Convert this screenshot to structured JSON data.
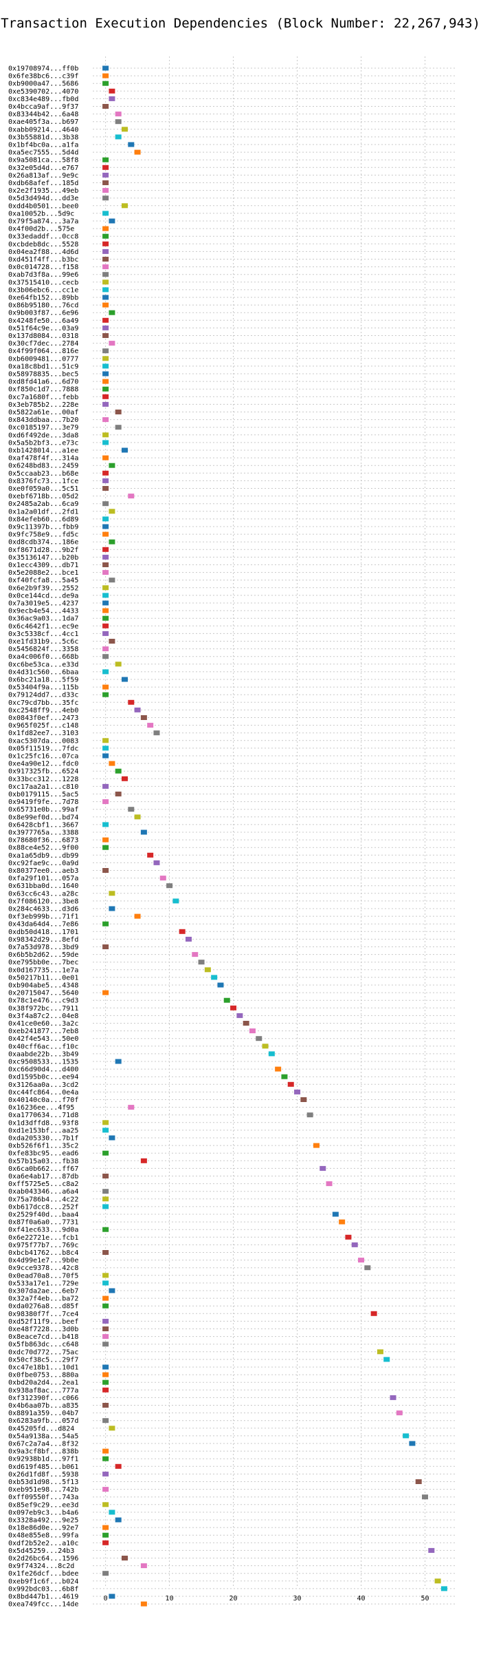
{
  "chart_data": {
    "type": "scatter",
    "title": "Transaction Execution Dependencies (Block Number: 22,267,943)",
    "xlabel": "",
    "ylabel": "",
    "xlim": [
      -2,
      55
    ],
    "xticks": [
      0,
      10,
      20,
      30,
      40,
      50
    ],
    "grid": true,
    "palette": [
      "#1f77b4",
      "#ff7f0e",
      "#2ca02c",
      "#d62728",
      "#9467bd",
      "#8c564b",
      "#e377c2",
      "#7f7f7f",
      "#bcbd22",
      "#17becf"
    ],
    "transactions": [
      "0x19708974...ff0b",
      "0x6fe38bc6...c39f",
      "0xb9000a47...5686",
      "0xe5390702...4070",
      "0xc834e489...fb0d",
      "0x4bcca9af...9f37",
      "0x83344b42...6a48",
      "0xae405f3a...b697",
      "0xabb09214...4640",
      "0x3b55881d...3b38",
      "0x1bf4bc0a...a1fa",
      "0xa5ec7555...5d4d",
      "0x9a5081ca...58f8",
      "0x32e05d4d...e767",
      "0x26a813af...9e9c",
      "0xdb68afef...185d",
      "0x2e2f1935...49eb",
      "0x5d3d494d...dd3e",
      "0xdd4b0501...bee0",
      "0xa10052b...5d9c",
      "0x79f5a874...3a7a",
      "0x4f00d2b...575e",
      "0x33edaddf...0cc8",
      "0xcbdeb8dc...5528",
      "0x04ea2f88...4d6d",
      "0xd451f4ff...b3bc",
      "0x0c014728...f158",
      "0xab7d3f8a...99e6",
      "0x37515410...cecb",
      "0x3b06ebc6...cc1e",
      "0xe64fb152...89bb",
      "0x86b95180...76cd",
      "0x9b003f87...6e96",
      "0x4248fe50...6a49",
      "0x51f64c9e...03a9",
      "0x137d8084...0318",
      "0x30cf7dec...2784",
      "0x4f99f064...816e",
      "0xb6009481...0777",
      "0xa18c8bd1...51c9",
      "0x58978835...bec5",
      "0xd8fd41a6...6d70",
      "0xf850c1d7...7888",
      "0xc7a1680f...febb",
      "0x3eb785b2...228e",
      "0x5822a61e...00af",
      "0x843ddbaa...7b20",
      "0xc0185197...3e79",
      "0xd6f492de...3da8",
      "0x5a5b2bf3...e73c",
      "0xb1428014...a1ee",
      "0xaf478f4f...314a",
      "0x6248bd83...2459",
      "0x5ccaab23...b68e",
      "0x8376fc73...1fce",
      "0xe0f059a0...5c51",
      "0xebf6718b...05d2",
      "0x2485a2ab...6ca9",
      "0x1a2a01df...2fd1",
      "0x84efeb60...6d89",
      "0x9c11397b...fbb9",
      "0x9fc758e9...fd5c",
      "0xd8cdb374...186e",
      "0xf8671d28...9b2f",
      "0x35136147...b20b",
      "0x1ecc4309...db71",
      "0x5e2088e2...bce1",
      "0xf40fcfa8...5a45",
      "0x6e2b9f39...2552",
      "0x0ce144cd...de9a",
      "0x7a3019e5...4237",
      "0x9ecb4e54...4433",
      "0x36ac9a03...1da7",
      "0x6c4642f1...ec9e",
      "0x3c5338cf...4cc1",
      "0xe1fd31b9...5c6c",
      "0x5456824f...3358",
      "0xa4c006f0...668b",
      "0xc6be53ca...e33d",
      "0x4d31c560...6baa",
      "0x6bc21a18...5f59",
      "0x53404f9a...115b",
      "0x79124dd7...d33c",
      "0xc79cd7bb...35fc",
      "0xc2548ff9...4eb0",
      "0x0843f0ef...2473",
      "0x965f025f...c148",
      "0x1fd82ee7...3103",
      "0xac5307da...0083",
      "0x05f11519...7fdc",
      "0x1c25fc16...07ca",
      "0xe4a90e12...fdc0",
      "0x917325fb...6524",
      "0x33bcc312...1228",
      "0xc17aa2a1...c810",
      "0xb0179115...5ac5",
      "0x9419f9fe...7d78",
      "0x65731e0b...99af",
      "0x8e99ef0d...bd74",
      "0x6428cbf1...3667",
      "0x3977765a...3388",
      "0x78680f36...6873",
      "0x88ce4e52...9f00",
      "0xa1a65db9...db99",
      "0xc92fae9c...0a9d",
      "0x80377ee0...aeb3",
      "0xfa29f101...057a",
      "0x631bba0d...1640",
      "0x63cc6c43...a28c",
      "0x7f086120...3be8",
      "0x284c4633...d3d6",
      "0xf3eb999b...71f1",
      "0x43da64d4...7e86",
      "0xdb50d418...1701",
      "0x98342d29...8efd",
      "0x7a53d978...3bd9",
      "0x6b5b2d62...59de",
      "0xe795bb0e...7bec",
      "0x0d167735...1e7a",
      "0x50217b11...0e01",
      "0xb904abe5...4348",
      "0x20715047...5640",
      "0x78c1e476...c9d3",
      "0x38f972bc...7911",
      "0x3f4a87c2...04e8",
      "0x41ce0e60...3a2c",
      "0xeb241877...7eb8",
      "0x42f4e543...50e0",
      "0x40cff6ac...f10c",
      "0xaabde22b...3b49",
      "0xc9508533...1535",
      "0xc66d90d4...d400",
      "0xd1595b0c...ee94",
      "0x3126aa0a...3cd2",
      "0xc44fc864...0e4a",
      "0x40140c0a...f70f",
      "0x16236ee...4f95",
      "0xa1770634...71d8",
      "0x1d3dffd8...93f8",
      "0xd1e153bf...aa25",
      "0xda205330...7b1f",
      "0xb526f6f1...35c2",
      "0xfe83bc95...ead6",
      "0x57b15a03...fb38",
      "0x6ca0b662...ff67",
      "0xa6e4ab17...87db",
      "0xff5725e5...c8a2",
      "0xab043346...a6a4",
      "0x75a786b4...4c22",
      "0xb617dcc8...252f",
      "0x2529f40d...baa4",
      "0x87f0a6a0...7731",
      "0xf41ec633...9d0a",
      "0x6e22721e...fcb1",
      "0x975f77b7...769c",
      "0xbcb41762...b8c4",
      "0x4d99e1e7...9b0e",
      "0x9cce9378...42c8",
      "0x0ead70a8...70f5",
      "0x533a17e1...729e",
      "0x307da2ae...6eb7",
      "0x32a7f4eb...ba72",
      "0xda0276a8...d85f",
      "0x98380f7f...7ce4",
      "0xd52f11f9...beef",
      "0xe48f7228...3d0b",
      "0x8eace7cd...b418",
      "0x5fb863dc...c648",
      "0xdc70d772...75ac",
      "0x50cf38c5...29f7",
      "0xc47e18b1...10d1",
      "0x0fbe0753...880a",
      "0xbd20a2d4...2ea1",
      "0x938af8ac...777a",
      "0xf312390f...c066",
      "0x4b6aa07b...a835",
      "0x8891a359...04b7",
      "0x6283a9fb...057d",
      "0x45205fd...d824",
      "0x54a9138a...54a5",
      "0x67c2a7a4...8f32",
      "0x9a3cf8bf...838b",
      "0x92938b1d...97f1",
      "0xd619f485...b061",
      "0x26d1fd8f...5938",
      "0xb53d1d98...5f13",
      "0xeb951e98...742b",
      "0xff09550f...743a",
      "0x85ef9c29...ee3d",
      "0x097eb9c3...b4a6",
      "0x3328a492...9e25",
      "0x18e86d0e...92e7",
      "0x48e855e8...99fa",
      "0xdf2b52e2...a10c",
      "0x5d45259...24b3",
      "0x2d26bc64...1596",
      "0x9f74324...8c2d",
      "0x1fe26dcf...bdee",
      "0xeb9f1c6f...b024",
      "0x992bdc03...6b8f",
      "0x8bd447b1...4619",
      "0xea749fcc...14de"
    ],
    "points": [
      [
        0,
        0
      ],
      [
        0,
        1
      ],
      [
        0,
        2
      ],
      [
        1,
        3
      ],
      [
        1,
        4
      ],
      [
        0,
        5
      ],
      [
        2,
        6
      ],
      [
        2,
        7
      ],
      [
        3,
        8
      ],
      [
        2,
        9
      ],
      [
        4,
        10
      ],
      [
        5,
        11
      ],
      [
        0,
        12
      ],
      [
        0,
        13
      ],
      [
        0,
        14
      ],
      [
        0,
        15
      ],
      [
        0,
        16
      ],
      [
        0,
        17
      ],
      [
        3,
        18
      ],
      [
        0,
        19
      ],
      [
        1,
        20
      ],
      [
        0,
        21
      ],
      [
        0,
        22
      ],
      [
        0,
        23
      ],
      [
        0,
        24
      ],
      [
        0,
        25
      ],
      [
        0,
        26
      ],
      [
        0,
        27
      ],
      [
        0,
        28
      ],
      [
        0,
        29
      ],
      [
        0,
        30
      ],
      [
        0,
        31
      ],
      [
        1,
        32
      ],
      [
        0,
        33
      ],
      [
        0,
        34
      ],
      [
        0,
        35
      ],
      [
        1,
        36
      ],
      [
        0,
        37
      ],
      [
        0,
        38
      ],
      [
        0,
        39
      ],
      [
        0,
        40
      ],
      [
        0,
        41
      ],
      [
        0,
        42
      ],
      [
        0,
        43
      ],
      [
        0,
        44
      ],
      [
        2,
        45
      ],
      [
        0,
        46
      ],
      [
        2,
        47
      ],
      [
        0,
        48
      ],
      [
        0,
        49
      ],
      [
        3,
        50
      ],
      [
        0,
        51
      ],
      [
        1,
        52
      ],
      [
        0,
        53
      ],
      [
        0,
        54
      ],
      [
        0,
        55
      ],
      [
        4,
        56
      ],
      [
        0,
        57
      ],
      [
        1,
        58
      ],
      [
        0,
        59
      ],
      [
        0,
        60
      ],
      [
        0,
        61
      ],
      [
        1,
        62
      ],
      [
        0,
        63
      ],
      [
        0,
        64
      ],
      [
        0,
        65
      ],
      [
        0,
        66
      ],
      [
        1,
        67
      ],
      [
        0,
        68
      ],
      [
        0,
        69
      ],
      [
        0,
        70
      ],
      [
        0,
        71
      ],
      [
        0,
        72
      ],
      [
        0,
        73
      ],
      [
        0,
        74
      ],
      [
        1,
        75
      ],
      [
        0,
        76
      ],
      [
        0,
        77
      ],
      [
        2,
        78
      ],
      [
        0,
        79
      ],
      [
        3,
        80
      ],
      [
        0,
        81
      ],
      [
        0,
        82
      ],
      [
        4,
        83
      ],
      [
        5,
        84
      ],
      [
        6,
        85
      ],
      [
        7,
        86
      ],
      [
        8,
        87
      ],
      [
        0,
        88
      ],
      [
        0,
        89
      ],
      [
        0,
        90
      ],
      [
        1,
        91
      ],
      [
        2,
        92
      ],
      [
        3,
        93
      ],
      [
        0,
        94
      ],
      [
        2,
        95
      ],
      [
        0,
        96
      ],
      [
        4,
        97
      ],
      [
        5,
        98
      ],
      [
        0,
        99
      ],
      [
        6,
        100
      ],
      [
        0,
        101
      ],
      [
        0,
        102
      ],
      [
        7,
        103
      ],
      [
        8,
        104
      ],
      [
        0,
        105
      ],
      [
        9,
        106
      ],
      [
        10,
        107
      ],
      [
        1,
        108
      ],
      [
        11,
        109
      ],
      [
        1,
        110
      ],
      [
        5,
        111
      ],
      [
        0,
        112
      ],
      [
        12,
        113
      ],
      [
        13,
        114
      ],
      [
        0,
        115
      ],
      [
        14,
        116
      ],
      [
        15,
        117
      ],
      [
        16,
        118
      ],
      [
        17,
        119
      ],
      [
        18,
        120
      ],
      [
        0,
        121
      ],
      [
        19,
        122
      ],
      [
        20,
        123
      ],
      [
        21,
        124
      ],
      [
        22,
        125
      ],
      [
        23,
        126
      ],
      [
        24,
        127
      ],
      [
        25,
        128
      ],
      [
        26,
        129
      ],
      [
        2,
        130
      ],
      [
        27,
        131
      ],
      [
        28,
        132
      ],
      [
        29,
        133
      ],
      [
        30,
        134
      ],
      [
        31,
        135
      ],
      [
        4,
        136
      ],
      [
        32,
        137
      ],
      [
        0,
        138
      ],
      [
        0,
        139
      ],
      [
        1,
        140
      ],
      [
        33,
        141
      ],
      [
        0,
        142
      ],
      [
        6,
        143
      ],
      [
        34,
        144
      ],
      [
        0,
        145
      ],
      [
        35,
        146
      ],
      [
        0,
        147
      ],
      [
        0,
        148
      ],
      [
        0,
        149
      ],
      [
        36,
        150
      ],
      [
        37,
        151
      ],
      [
        0,
        152
      ],
      [
        38,
        153
      ],
      [
        39,
        154
      ],
      [
        0,
        155
      ],
      [
        40,
        156
      ],
      [
        41,
        157
      ],
      [
        0,
        158
      ],
      [
        0,
        159
      ],
      [
        1,
        160
      ],
      [
        0,
        161
      ],
      [
        0,
        162
      ],
      [
        42,
        163
      ],
      [
        0,
        164
      ],
      [
        0,
        165
      ],
      [
        0,
        166
      ],
      [
        0,
        167
      ],
      [
        43,
        168
      ],
      [
        44,
        169
      ],
      [
        0,
        170
      ],
      [
        0,
        171
      ],
      [
        0,
        172
      ],
      [
        0,
        173
      ],
      [
        45,
        174
      ],
      [
        0,
        175
      ],
      [
        46,
        176
      ],
      [
        0,
        177
      ],
      [
        1,
        178
      ],
      [
        47,
        179
      ],
      [
        48,
        180
      ],
      [
        0,
        181
      ],
      [
        0,
        182
      ],
      [
        2,
        183
      ],
      [
        0,
        184
      ],
      [
        49,
        185
      ],
      [
        0,
        186
      ],
      [
        50,
        187
      ],
      [
        0,
        188
      ],
      [
        1,
        189
      ],
      [
        2,
        190
      ],
      [
        0,
        191
      ],
      [
        0,
        192
      ],
      [
        0,
        193
      ],
      [
        51,
        194
      ],
      [
        3,
        195
      ],
      [
        6,
        196
      ],
      [
        0,
        197
      ],
      [
        52,
        198
      ],
      [
        53,
        199
      ],
      [
        1,
        200
      ],
      [
        6,
        201
      ]
    ]
  }
}
